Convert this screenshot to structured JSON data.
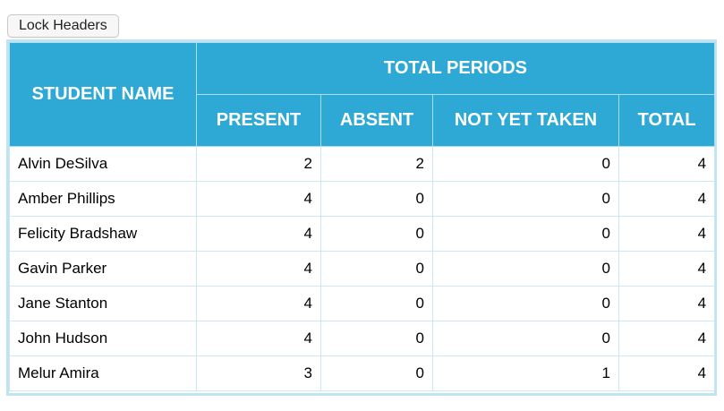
{
  "toolbar": {
    "lock_headers_label": "Lock Headers"
  },
  "table": {
    "header": {
      "student_name": "STUDENT NAME",
      "total_periods": "TOTAL PERIODS",
      "present": "PRESENT",
      "absent": "ABSENT",
      "not_yet_taken": "NOT YET TAKEN",
      "total": "TOTAL"
    },
    "rows": [
      {
        "name": "Alvin DeSilva",
        "present": "2",
        "absent": "2",
        "not_yet_taken": "0",
        "total": "4"
      },
      {
        "name": "Amber Phillips",
        "present": "4",
        "absent": "0",
        "not_yet_taken": "0",
        "total": "4"
      },
      {
        "name": "Felicity Bradshaw",
        "present": "4",
        "absent": "0",
        "not_yet_taken": "0",
        "total": "4"
      },
      {
        "name": "Gavin Parker",
        "present": "4",
        "absent": "0",
        "not_yet_taken": "0",
        "total": "4"
      },
      {
        "name": "Jane Stanton",
        "present": "4",
        "absent": "0",
        "not_yet_taken": "0",
        "total": "4"
      },
      {
        "name": "John Hudson",
        "present": "4",
        "absent": "0",
        "not_yet_taken": "0",
        "total": "4"
      },
      {
        "name": "Melur Amira",
        "present": "3",
        "absent": "0",
        "not_yet_taken": "1",
        "total": "4"
      }
    ]
  },
  "colors": {
    "header_bg": "#2ea8d5",
    "header_text": "#ffffff",
    "grid_border": "#cbe9f3",
    "outer_border": "#bfe4f1"
  }
}
